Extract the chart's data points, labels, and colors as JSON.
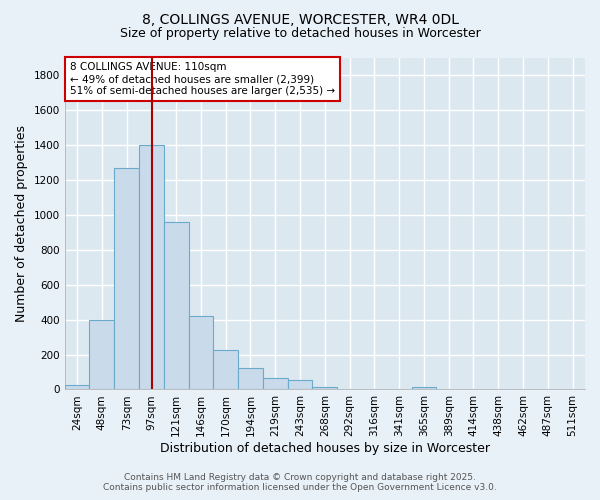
{
  "title": "8, COLLINGS AVENUE, WORCESTER, WR4 0DL",
  "subtitle": "Size of property relative to detached houses in Worcester",
  "xlabel": "Distribution of detached houses by size in Worcester",
  "ylabel": "Number of detached properties",
  "bar_labels": [
    "24sqm",
    "48sqm",
    "73sqm",
    "97sqm",
    "121sqm",
    "146sqm",
    "170sqm",
    "194sqm",
    "219sqm",
    "243sqm",
    "268sqm",
    "292sqm",
    "316sqm",
    "341sqm",
    "365sqm",
    "389sqm",
    "414sqm",
    "438sqm",
    "462sqm",
    "487sqm",
    "511sqm"
  ],
  "bar_values": [
    25,
    395,
    1270,
    1400,
    960,
    420,
    228,
    125,
    65,
    55,
    15,
    5,
    0,
    0,
    12,
    0,
    0,
    0,
    0,
    0,
    0
  ],
  "bar_color": "#c9daea",
  "bar_edge_color": "#6aabcc",
  "vline_color": "#aa0000",
  "annotation_box_text": "8 COLLINGS AVENUE: 110sqm\n← 49% of detached houses are smaller (2,399)\n51% of semi-detached houses are larger (2,535) →",
  "annotation_box_facecolor": "white",
  "annotation_box_edgecolor": "#cc0000",
  "ylim": [
    0,
    1900
  ],
  "yticks": [
    0,
    200,
    400,
    600,
    800,
    1000,
    1200,
    1400,
    1600,
    1800
  ],
  "plot_bg_color": "#dce8f0",
  "fig_bg_color": "#e8f0f8",
  "grid_color": "white",
  "footer_line1": "Contains HM Land Registry data © Crown copyright and database right 2025.",
  "footer_line2": "Contains public sector information licensed under the Open Government Licence v3.0.",
  "title_fontsize": 10,
  "subtitle_fontsize": 9,
  "axis_label_fontsize": 9,
  "tick_fontsize": 7.5,
  "annotation_fontsize": 7.5,
  "footer_fontsize": 6.5,
  "vline_x_data": 3.67
}
